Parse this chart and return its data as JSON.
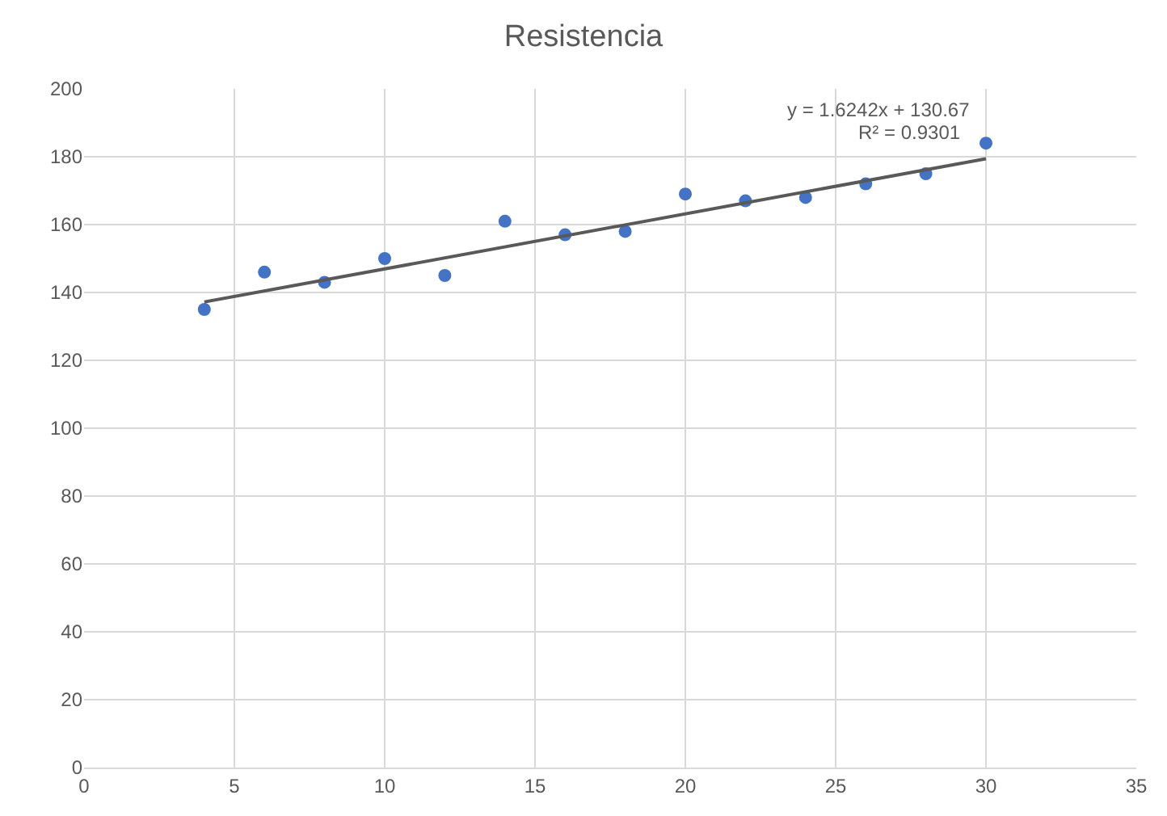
{
  "chart_data": {
    "type": "scatter",
    "title": "Resistencia",
    "xlim": [
      0,
      35
    ],
    "xticks": [
      0,
      5,
      10,
      15,
      20,
      25,
      30,
      35
    ],
    "ylim": [
      0,
      200
    ],
    "yticks": [
      0,
      20,
      40,
      60,
      80,
      100,
      120,
      140,
      160,
      180,
      200
    ],
    "grid": true,
    "series": [
      {
        "marker": "circle",
        "color": "#4472c4",
        "x": [
          4,
          6,
          8,
          10,
          12,
          14,
          16,
          18,
          20,
          22,
          24,
          26,
          28,
          30
        ],
        "values": [
          135,
          146,
          143,
          150,
          145,
          161,
          157,
          158,
          169,
          167,
          168,
          172,
          175,
          184
        ]
      },
      {
        "type": "line",
        "marker": "none",
        "color": "#595959",
        "line_style": "solid",
        "x": [
          4,
          30
        ],
        "values": [
          137.2,
          179.4
        ]
      }
    ],
    "annotations": [
      "y = 1.6242x + 130.67",
      "R² = 0.9301"
    ]
  }
}
